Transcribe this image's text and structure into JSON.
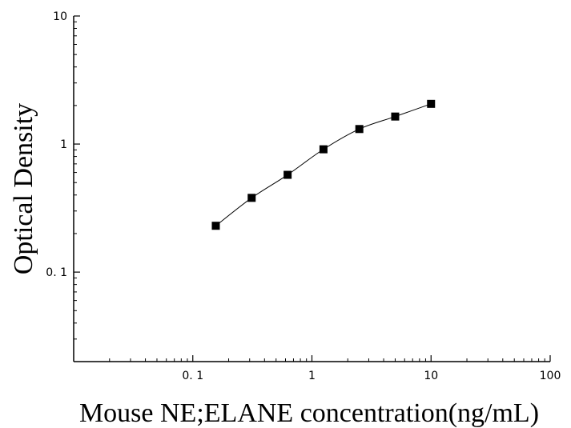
{
  "chart_data": {
    "type": "scatter",
    "title": "",
    "xlabel": "Mouse NE;ELANE concentration(ng/mL)",
    "ylabel": "Optical Density",
    "xscale": "log",
    "yscale": "log",
    "xlim": [
      0.01,
      100
    ],
    "ylim": [
      0.02,
      10
    ],
    "x_ticks": [
      {
        "value": 0.1,
        "label": "0. 1"
      },
      {
        "value": 1,
        "label": "1"
      },
      {
        "value": 10,
        "label": "10"
      },
      {
        "value": 100,
        "label": "100"
      }
    ],
    "y_ticks": [
      {
        "value": 0.1,
        "label": "0. 1"
      },
      {
        "value": 1,
        "label": "1"
      },
      {
        "value": 10,
        "label": "10"
      }
    ],
    "grid": false,
    "series": [
      {
        "marker": "square",
        "color": "#000000",
        "fit_curve": true,
        "x": [
          0.156,
          0.312,
          0.625,
          1.25,
          2.5,
          5,
          10
        ],
        "y": [
          0.23,
          0.38,
          0.575,
          0.91,
          1.31,
          1.64,
          2.06
        ]
      }
    ]
  }
}
